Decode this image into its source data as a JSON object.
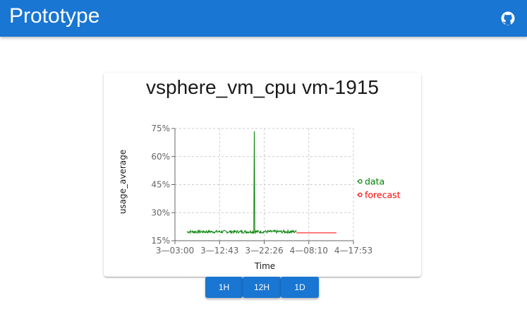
{
  "app": {
    "title": "Prototype"
  },
  "header": {
    "github_icon": "github-icon"
  },
  "card": {
    "title": "vsphere_vm_cpu vm-1915"
  },
  "range_buttons": [
    {
      "label": "1H"
    },
    {
      "label": "12H"
    },
    {
      "label": "1D"
    }
  ],
  "chart_data": {
    "type": "line",
    "title": "vsphere_vm_cpu vm-1915",
    "xlabel": "Time",
    "ylabel": "usage_average",
    "yticks": [
      "15%",
      "30%",
      "45%",
      "60%",
      "75%"
    ],
    "xticks": [
      "3—03:00",
      "3—12:43",
      "3—22:26",
      "4—08:10",
      "4—17:53"
    ],
    "ylim": [
      15,
      75
    ],
    "grid": true,
    "legend": "right",
    "series": [
      {
        "name": "data",
        "color": "#008000",
        "baseline": 19.8,
        "x_start": 0.27,
        "x_end": 2.72,
        "spike_x": 1.78,
        "spike_value": 73.5
      },
      {
        "name": "forecast",
        "color": "#ff0000",
        "baseline": 19.2,
        "x_start": 2.72,
        "x_end": 3.62
      }
    ]
  }
}
